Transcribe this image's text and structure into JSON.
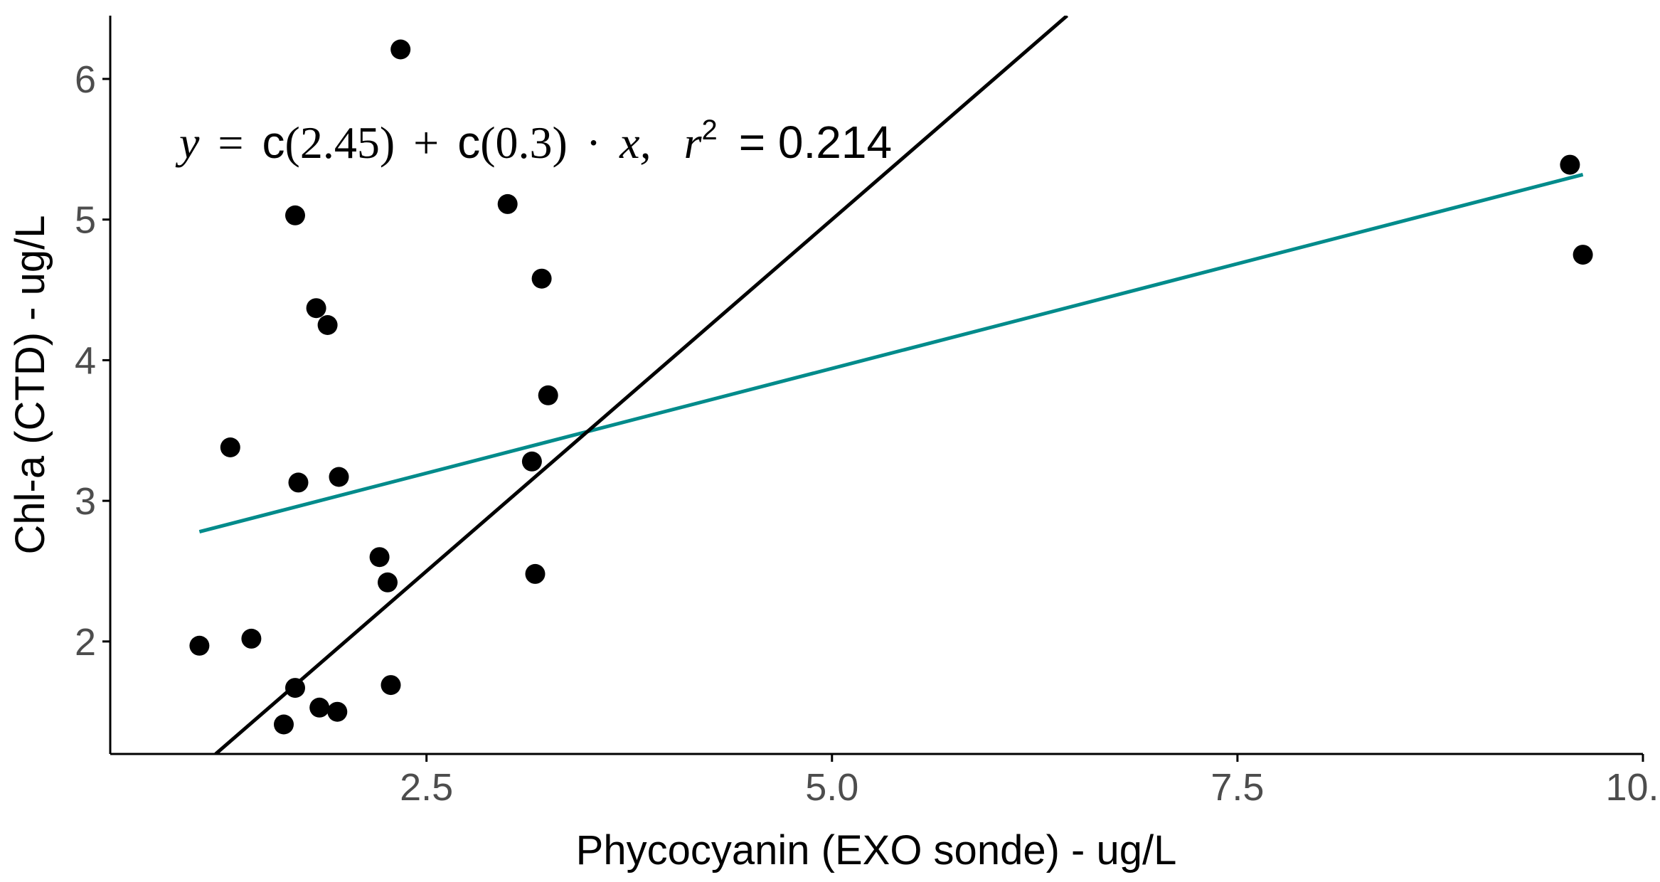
{
  "chart_data": {
    "type": "scatter",
    "title": "",
    "xlabel": "Phycocyanin (EXO sonde) - ug/L",
    "ylabel": "Chl-a (CTD) - ug/L",
    "xlim": [
      0.55,
      10.0
    ],
    "ylim": [
      1.2,
      6.45
    ],
    "x_ticks": [
      2.5,
      5.0,
      7.5,
      10.0
    ],
    "x_tick_labels": [
      "2.5",
      "5.0",
      "7.5",
      "10.0"
    ],
    "y_ticks": [
      2,
      3,
      4,
      5,
      6
    ],
    "y_tick_labels": [
      "2",
      "3",
      "4",
      "5",
      "6"
    ],
    "grid": false,
    "points": [
      {
        "x": 1.1,
        "y": 1.97
      },
      {
        "x": 1.29,
        "y": 3.38
      },
      {
        "x": 1.42,
        "y": 2.02
      },
      {
        "x": 1.62,
        "y": 1.41
      },
      {
        "x": 1.69,
        "y": 1.67
      },
      {
        "x": 1.69,
        "y": 5.03
      },
      {
        "x": 1.71,
        "y": 3.13
      },
      {
        "x": 1.82,
        "y": 4.37
      },
      {
        "x": 1.84,
        "y": 1.53
      },
      {
        "x": 1.89,
        "y": 4.25
      },
      {
        "x": 1.95,
        "y": 1.5
      },
      {
        "x": 1.96,
        "y": 3.17
      },
      {
        "x": 2.21,
        "y": 2.6
      },
      {
        "x": 2.26,
        "y": 2.42
      },
      {
        "x": 2.28,
        "y": 1.69
      },
      {
        "x": 2.34,
        "y": 6.21
      },
      {
        "x": 3.0,
        "y": 5.11
      },
      {
        "x": 3.15,
        "y": 3.28
      },
      {
        "x": 3.17,
        "y": 2.48
      },
      {
        "x": 3.21,
        "y": 4.58
      },
      {
        "x": 3.25,
        "y": 3.75
      },
      {
        "x": 9.55,
        "y": 5.39
      },
      {
        "x": 9.63,
        "y": 4.75
      }
    ],
    "lines": [
      {
        "kind": "regression",
        "color": "#008b8b",
        "x": [
          1.1,
          9.63
        ],
        "y": [
          2.78,
          5.32
        ]
      },
      {
        "kind": "one-to-one",
        "color": "#000000",
        "x": [
          1.2,
          6.45
        ],
        "y": [
          1.2,
          6.45
        ]
      }
    ],
    "annotation": {
      "y": "y",
      "eq": "=",
      "c1": "c",
      "intercept": "(2.45)",
      "plus": "+",
      "c2": "c",
      "slope": "(0.3)",
      "dot": "·",
      "x": "x,",
      "r": "r",
      "sup": "2",
      "r2": "= 0.214"
    },
    "colors": {
      "points": "#000000",
      "regression": "#008b8b",
      "identity": "#000000",
      "axis": "#000000",
      "ticks": "#4d4d4d"
    }
  }
}
